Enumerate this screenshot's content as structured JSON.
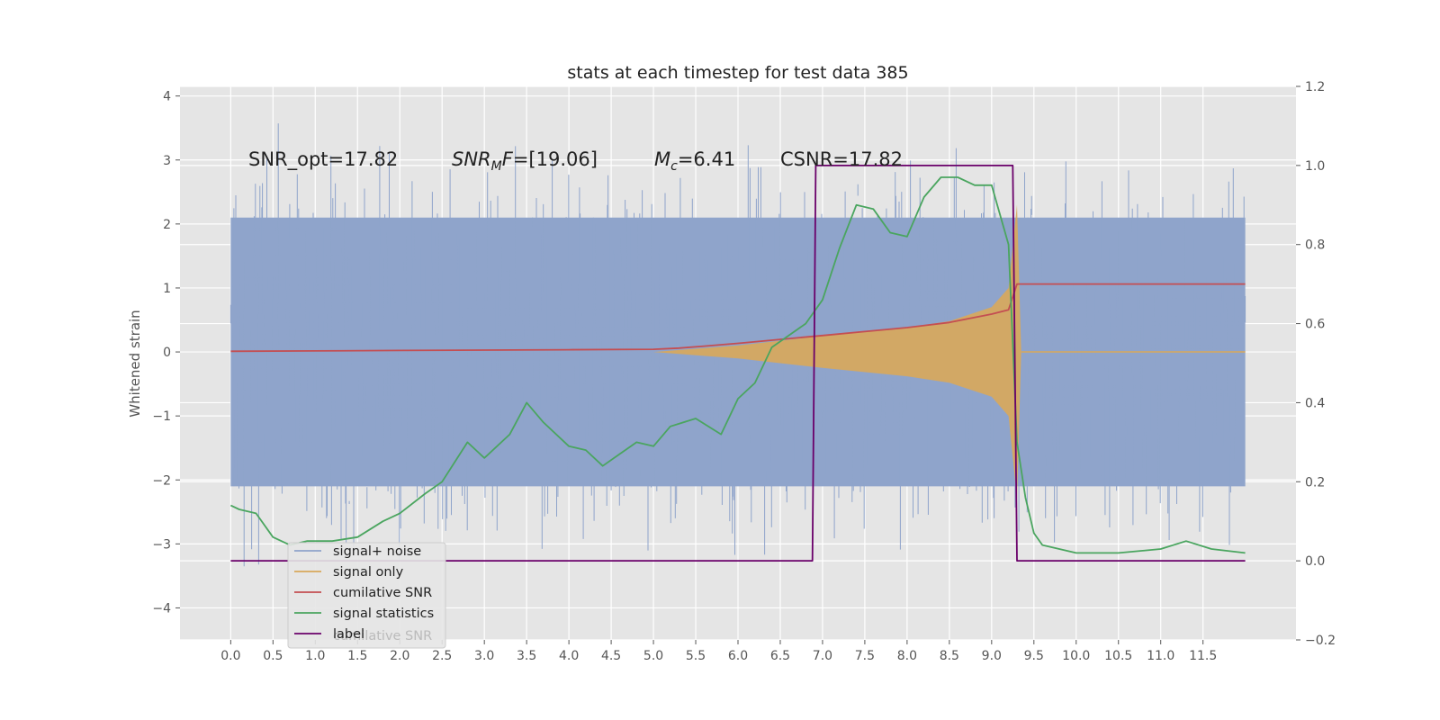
{
  "chart_data": {
    "type": "line",
    "title": "stats at each timestep for test data 385",
    "xlabel": "",
    "ylabel": "Whitened strain",
    "xlim": [
      -0.6,
      12.6
    ],
    "ylim": [
      -4.5,
      4.15
    ],
    "y2lim": [
      -0.2,
      1.2
    ],
    "grid": true,
    "legend_position": "lower-left",
    "x_ticks": [
      "0.0",
      "0.5",
      "1.0",
      "1.5",
      "2.0",
      "2.5",
      "3.0",
      "3.5",
      "4.0",
      "4.5",
      "5.0",
      "5.5",
      "6.0",
      "6.5",
      "7.0",
      "7.5",
      "8.0",
      "8.5",
      "9.0",
      "9.5",
      "10.0",
      "10.5",
      "11.0",
      "11.5"
    ],
    "y_ticks": [
      "4",
      "3",
      "2",
      "1",
      "0",
      "−1",
      "−2",
      "−3",
      "−4"
    ],
    "y2_ticks": [
      "1.2",
      "1.0",
      "0.8",
      "0.6",
      "0.4",
      "0.2",
      "0.0",
      "−0.2"
    ],
    "annotations": {
      "snr_opt": "SNR_opt=17.82",
      "snr_mf_value": "=[19.06]",
      "mc_value": "=6.41",
      "csnr": "CSNR=17.82"
    },
    "series": [
      {
        "name": "signal+ noise",
        "axis": "left",
        "color": "#8fa4cb",
        "style": "dense noise band",
        "x_range": [
          0.0,
          12.0
        ],
        "band_y": [
          -2.1,
          2.1
        ],
        "extreme_y": [
          -3.6,
          3.75
        ]
      },
      {
        "name": "signal only",
        "axis": "left",
        "color": "#d9a85a",
        "style": "chirp envelope",
        "x": [
          5.0,
          6.0,
          7.0,
          8.0,
          8.5,
          9.0,
          9.2,
          9.3,
          9.35,
          12.0
        ],
        "amplitude": [
          0.0,
          0.1,
          0.25,
          0.38,
          0.48,
          0.7,
          1.0,
          2.3,
          0.0,
          0.0
        ]
      },
      {
        "name": "cumilative SNR",
        "axis": "right",
        "color": "#c44e52",
        "x": [
          0.0,
          1.0,
          2.0,
          3.0,
          4.0,
          5.0,
          5.3,
          5.6,
          6.0,
          6.5,
          7.0,
          7.5,
          8.0,
          8.5,
          9.0,
          9.2,
          9.3,
          10.0,
          11.0,
          12.0
        ],
        "values": [
          0.53,
          0.531,
          0.532,
          0.533,
          0.534,
          0.535,
          0.538,
          0.543,
          0.55,
          0.56,
          0.57,
          0.58,
          0.59,
          0.603,
          0.624,
          0.635,
          0.7,
          0.7,
          0.7,
          0.7
        ]
      },
      {
        "name": "signal statistics",
        "axis": "right",
        "color": "#4aa55f",
        "x": [
          0.0,
          0.1,
          0.3,
          0.5,
          0.7,
          0.9,
          1.2,
          1.5,
          1.8,
          2.0,
          2.3,
          2.5,
          2.8,
          3.0,
          3.3,
          3.5,
          3.7,
          4.0,
          4.2,
          4.4,
          4.6,
          4.8,
          5.0,
          5.2,
          5.5,
          5.8,
          6.0,
          6.2,
          6.4,
          6.6,
          6.8,
          7.0,
          7.2,
          7.4,
          7.6,
          7.8,
          8.0,
          8.2,
          8.4,
          8.6,
          8.8,
          9.0,
          9.2,
          9.3,
          9.4,
          9.5,
          9.6,
          9.8,
          10.0,
          10.5,
          11.0,
          11.3,
          11.6,
          12.0
        ],
        "values": [
          0.14,
          0.13,
          0.12,
          0.06,
          0.04,
          0.05,
          0.05,
          0.06,
          0.1,
          0.12,
          0.17,
          0.2,
          0.3,
          0.26,
          0.32,
          0.4,
          0.35,
          0.29,
          0.28,
          0.24,
          0.27,
          0.3,
          0.29,
          0.34,
          0.36,
          0.32,
          0.41,
          0.45,
          0.54,
          0.57,
          0.6,
          0.66,
          0.79,
          0.9,
          0.89,
          0.83,
          0.82,
          0.92,
          0.97,
          0.97,
          0.95,
          0.95,
          0.8,
          0.3,
          0.16,
          0.07,
          0.04,
          0.03,
          0.02,
          0.02,
          0.03,
          0.05,
          0.03,
          0.02
        ]
      },
      {
        "name": "label",
        "axis": "right",
        "color": "#6a006a",
        "x": [
          0.0,
          6.88,
          6.92,
          9.25,
          9.3,
          12.0
        ],
        "values": [
          0.0,
          0.0,
          1.0,
          1.0,
          0.0,
          0.0
        ]
      }
    ],
    "legend_ghost_label": "cumilative SNR"
  }
}
